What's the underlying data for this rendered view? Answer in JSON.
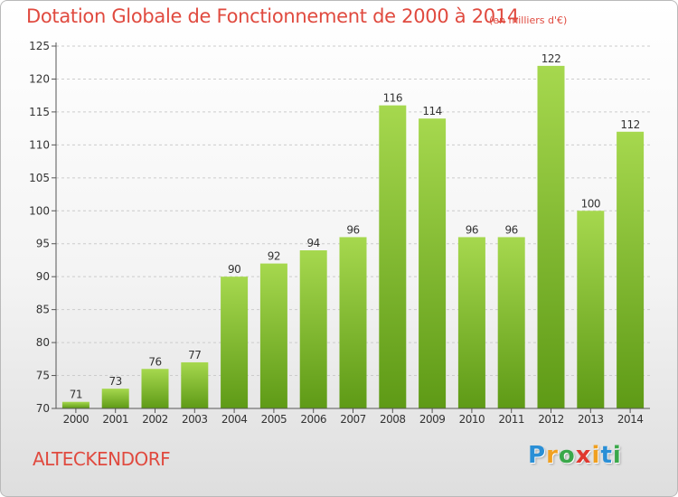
{
  "header": {
    "title": "Dotation Globale de Fonctionnement de 2000 à 2014",
    "unit_note": "(en milliers d'€)"
  },
  "footer": {
    "commune": "ALTECKENDORF",
    "logo_letters": [
      {
        "ch": "P",
        "color": "#2a8fd6"
      },
      {
        "ch": "r",
        "color": "#f0a020"
      },
      {
        "ch": "o",
        "color": "#3aa84a"
      },
      {
        "ch": "x",
        "color": "#e0382f"
      },
      {
        "ch": "i",
        "color": "#f0a020"
      },
      {
        "ch": "t",
        "color": "#2a8fd6"
      },
      {
        "ch": "i",
        "color": "#3aa84a"
      }
    ]
  },
  "colors": {
    "bar_top": "#a6d84e",
    "bar_bottom": "#5e9a16",
    "title": "#e04a3f",
    "axis": "#555555",
    "grid": "#cccccc"
  },
  "chart_data": {
    "type": "bar",
    "title": "Dotation Globale de Fonctionnement de 2000 à 2014",
    "subtitle": "(en milliers d'€)",
    "categories": [
      "2000",
      "2001",
      "2002",
      "2003",
      "2004",
      "2005",
      "2006",
      "2007",
      "2008",
      "2009",
      "2010",
      "2011",
      "2012",
      "2013",
      "2014"
    ],
    "values": [
      71,
      73,
      76,
      77,
      90,
      92,
      94,
      96,
      116,
      114,
      96,
      96,
      122,
      100,
      112
    ],
    "xlabel": "",
    "ylabel": "",
    "ylim": [
      70,
      125
    ],
    "yticks": [
      70,
      75,
      80,
      85,
      90,
      95,
      100,
      105,
      110,
      115,
      120,
      125
    ],
    "grid": "horizontal-dashed",
    "legend": "none",
    "data_labels": true
  }
}
